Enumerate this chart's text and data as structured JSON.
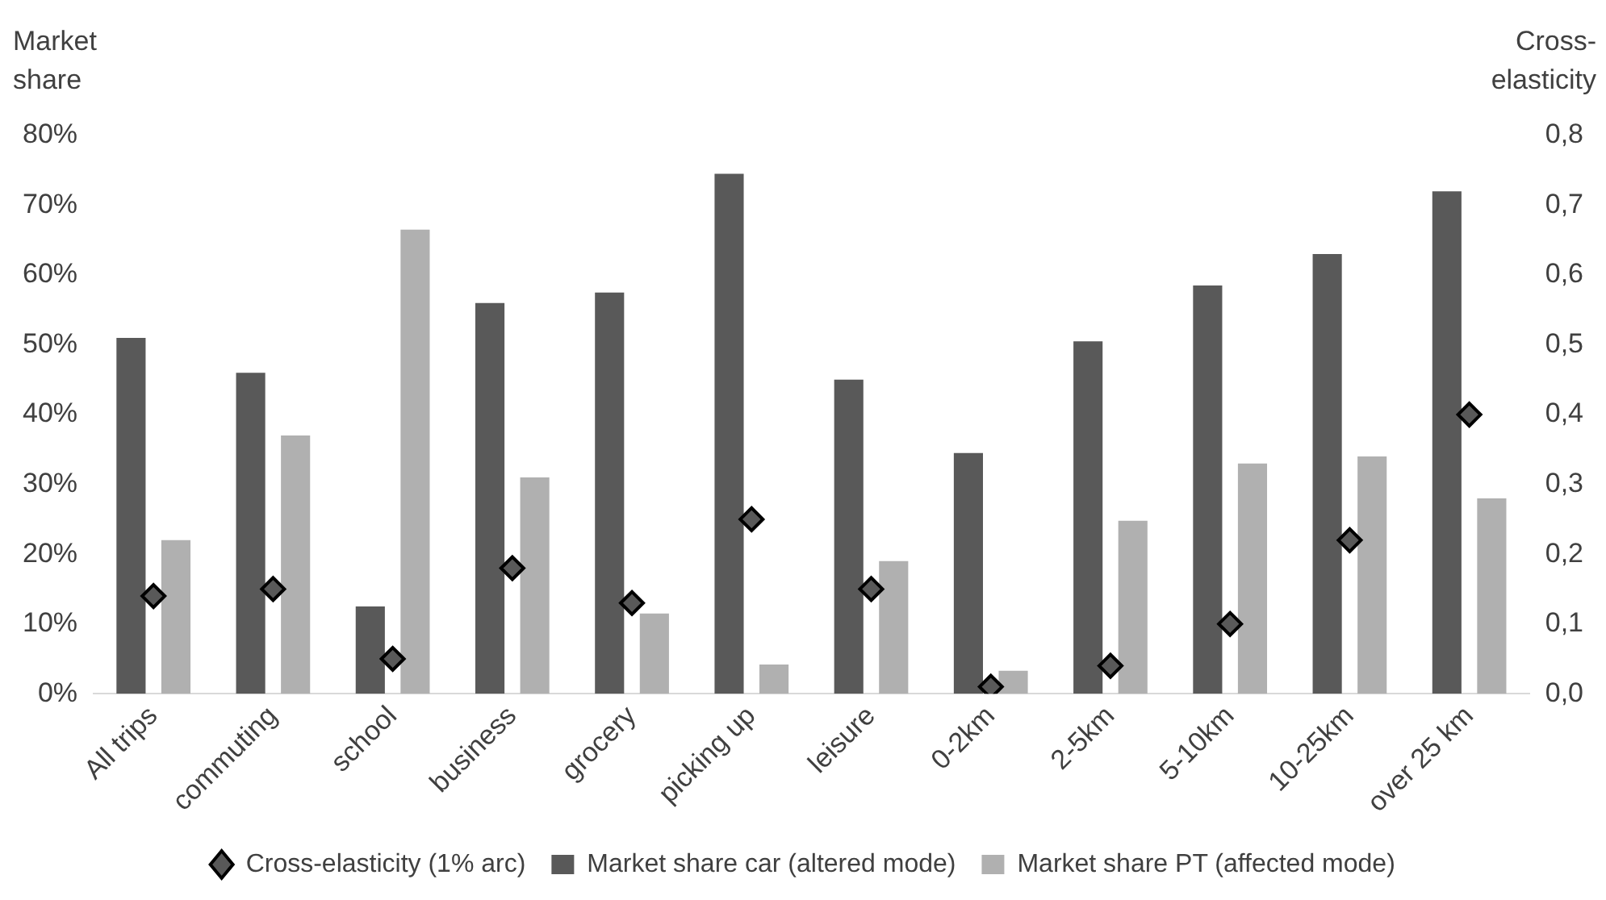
{
  "chart_data": {
    "type": "bar",
    "ylabel": "Market share",
    "y2label": "Cross-elasticity",
    "categories": [
      "All trips",
      "commuting",
      "school",
      "business",
      "grocery",
      "picking up",
      "leisure",
      "0-2km",
      "2-5km",
      "5-10km",
      "10-25km",
      "over 25 km"
    ],
    "series": [
      {
        "name": "Market share car (altered mode)",
        "color": "#595959",
        "values": [
          51,
          46,
          12.5,
          56,
          57.5,
          74.5,
          45,
          34.5,
          50.5,
          58.5,
          63,
          72
        ]
      },
      {
        "name": "Market share PT (affected mode)",
        "color": "#b0b0b0",
        "values": [
          22,
          37,
          66.5,
          31,
          11.5,
          4.2,
          19,
          3.3,
          24.8,
          33,
          34,
          28
        ]
      },
      {
        "name": "Cross-elasticity (1% arc)",
        "type": "scatter",
        "axis": "y2",
        "marker": "diamond",
        "color": "#595959",
        "values": [
          0.14,
          0.15,
          0.05,
          0.18,
          0.13,
          0.25,
          0.15,
          0.01,
          0.04,
          0.1,
          0.22,
          0.4
        ]
      }
    ],
    "ylim": [
      0,
      80
    ],
    "yticks": [
      {
        "value": 0,
        "label": "0%"
      },
      {
        "value": 10,
        "label": "10%"
      },
      {
        "value": 20,
        "label": "20%"
      },
      {
        "value": 30,
        "label": "30%"
      },
      {
        "value": 40,
        "label": "40%"
      },
      {
        "value": 50,
        "label": "50%"
      },
      {
        "value": 60,
        "label": "60%"
      },
      {
        "value": 70,
        "label": "70%"
      },
      {
        "value": 80,
        "label": "80%"
      }
    ],
    "y2lim": [
      0,
      0.8
    ],
    "y2ticks": [
      {
        "value": 0,
        "label": "0,0"
      },
      {
        "value": 0.1,
        "label": "0,1"
      },
      {
        "value": 0.2,
        "label": "0,2"
      },
      {
        "value": 0.3,
        "label": "0,3"
      },
      {
        "value": 0.4,
        "label": "0,4"
      },
      {
        "value": 0.5,
        "label": "0,5"
      },
      {
        "value": 0.6,
        "label": "0,6"
      },
      {
        "value": 0.7,
        "label": "0,7"
      },
      {
        "value": 0.8,
        "label": "0,8"
      }
    ],
    "grid": false,
    "legend": "bottom"
  }
}
